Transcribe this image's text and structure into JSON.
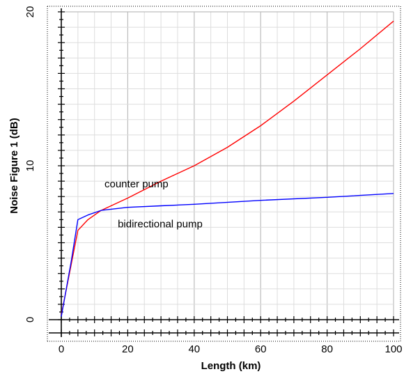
{
  "chart_data": {
    "type": "line",
    "title": "",
    "xlabel": "Length (km)",
    "ylabel": "Noise Figure 1 (dB)",
    "xlim": [
      0,
      100
    ],
    "ylim": [
      0,
      20
    ],
    "x_ticks": [
      0,
      20,
      40,
      60,
      80,
      100
    ],
    "y_ticks": [
      0,
      10,
      20
    ],
    "grid": true,
    "series": [
      {
        "color": "#ff0000",
        "points": [
          [
            0,
            0.3
          ],
          [
            3,
            3.6
          ],
          [
            5,
            5.8
          ],
          [
            8,
            6.5
          ],
          [
            12,
            7.1
          ],
          [
            20,
            7.9
          ],
          [
            30,
            9.0
          ],
          [
            40,
            10.0
          ],
          [
            50,
            11.2
          ],
          [
            60,
            12.6
          ],
          [
            70,
            14.2
          ],
          [
            80,
            15.9
          ],
          [
            90,
            17.6
          ],
          [
            100,
            19.4
          ]
        ]
      },
      {
        "color": "#0000ff",
        "points": [
          [
            0,
            0.2
          ],
          [
            3,
            3.8
          ],
          [
            5,
            6.5
          ],
          [
            8,
            6.8
          ],
          [
            12,
            7.1
          ],
          [
            20,
            7.3
          ],
          [
            30,
            7.4
          ],
          [
            40,
            7.5
          ],
          [
            60,
            7.75
          ],
          [
            80,
            7.95
          ],
          [
            100,
            8.2
          ]
        ]
      }
    ],
    "annotations": [
      {
        "text": "counter pump",
        "x": 13,
        "y": 8.6
      },
      {
        "text": "bidirectional pump",
        "x": 17,
        "y": 6.0
      }
    ]
  }
}
